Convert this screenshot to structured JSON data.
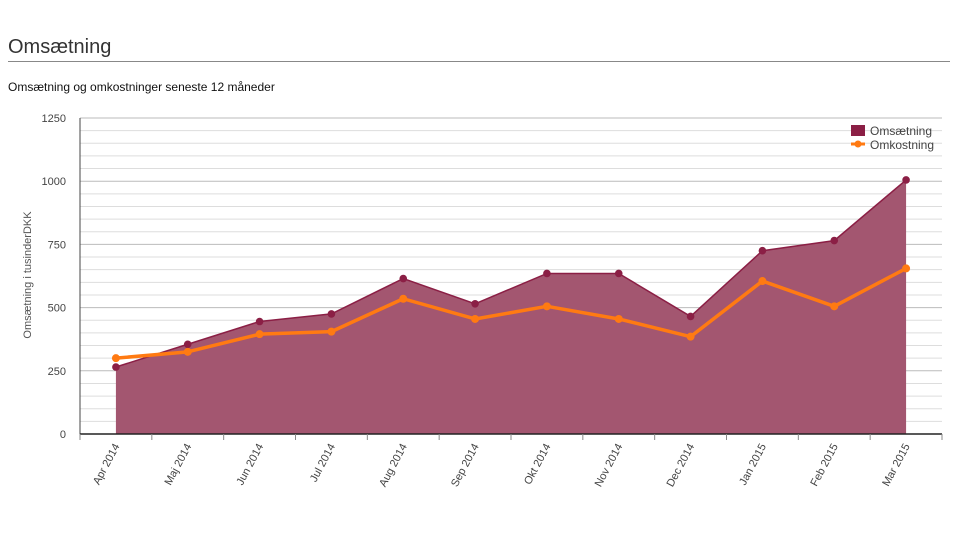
{
  "header": {
    "title": "Omsætning"
  },
  "chart_data": {
    "type": "area",
    "subtitle": "Omsætning og omkostninger seneste 12 måneder",
    "ylabel": "Omsætning i tusinderDKK",
    "categories": [
      "Apr 2014",
      "Maj 2014",
      "Jun 2014",
      "Jul 2014",
      "Aug 2014",
      "Sep 2014",
      "Okt 2014",
      "Nov 2014",
      "Dec 2014",
      "Jan 2015",
      "Feb 2015",
      "Mar 2015"
    ],
    "ylim": [
      0,
      1250
    ],
    "yticks": [
      0,
      250,
      500,
      750,
      1000,
      1250
    ],
    "grid": true,
    "legend_position": "top-right",
    "series": [
      {
        "name": "Omsætning",
        "type": "area",
        "color": "#8b1f45",
        "fill": "#a35670",
        "values": [
          265,
          355,
          445,
          475,
          615,
          515,
          635,
          635,
          465,
          725,
          765,
          1005
        ]
      },
      {
        "name": "Omkostning",
        "type": "line",
        "color": "#ff7a12",
        "values": [
          300,
          325,
          395,
          405,
          535,
          455,
          505,
          455,
          385,
          605,
          505,
          655
        ]
      }
    ]
  }
}
